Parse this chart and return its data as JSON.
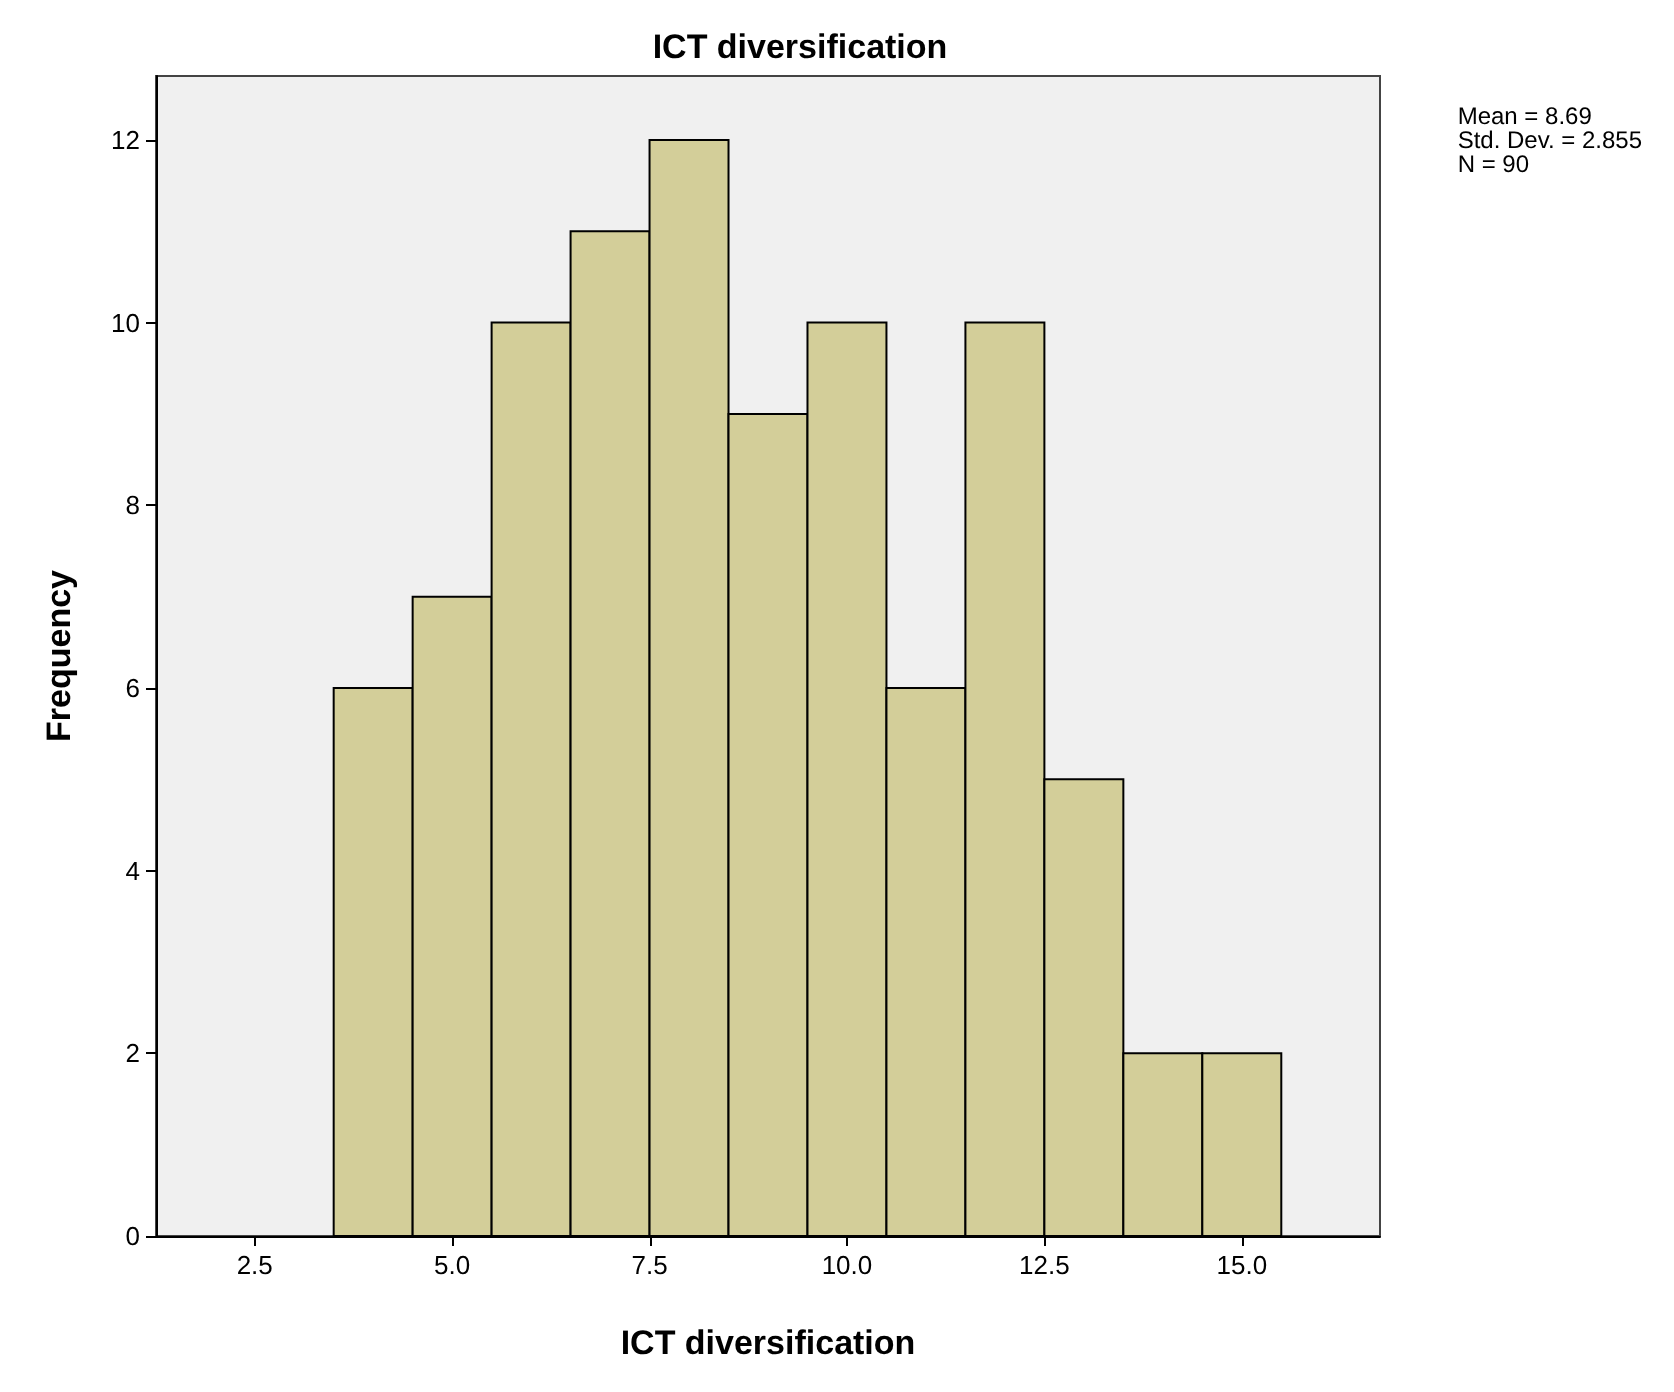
{
  "chart_data": {
    "type": "histogram",
    "title": "ICT diversification",
    "xlabel": "ICT diversification",
    "ylabel": "Frequency",
    "bins": [
      3.5,
      4.5,
      5.5,
      6.5,
      7.5,
      8.5,
      9.5,
      10.5,
      11.5,
      12.5,
      13.5,
      14.5,
      15.5
    ],
    "values": [
      6,
      7,
      10,
      11,
      12,
      9,
      10,
      6,
      10,
      5,
      2,
      2
    ],
    "color": "#d3ce99",
    "xlim": [
      1.25,
      16.75
    ],
    "xticks": [
      {
        "value": 2.5,
        "label": "2.5"
      },
      {
        "value": 5,
        "label": "5.0"
      },
      {
        "value": 7.5,
        "label": "7.5"
      },
      {
        "value": 10,
        "label": "10.0"
      },
      {
        "value": 12.5,
        "label": "12.5"
      },
      {
        "value": 15,
        "label": "15.0"
      }
    ],
    "ylim": [
      0,
      12.7
    ],
    "yticks": [
      0,
      2,
      4,
      6,
      8,
      10,
      12
    ],
    "annotations": [
      "Mean = 8.69",
      "Std. Dev. = 2.855",
      "N = 90"
    ],
    "grid": false
  }
}
